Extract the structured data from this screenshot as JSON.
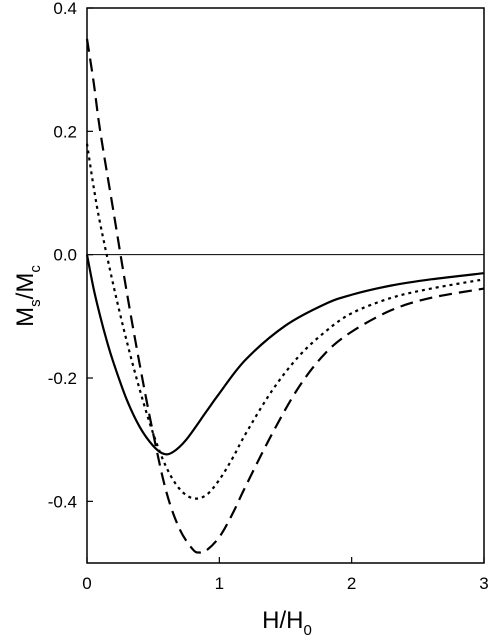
{
  "chart_data": {
    "type": "line",
    "xlabel": {
      "main": "H/H",
      "sub": "0"
    },
    "ylabel": {
      "m": "M",
      "s1": "s",
      "slash": "/M",
      "s2": "c"
    },
    "xlim": [
      0,
      3
    ],
    "ylim": [
      -0.5,
      0.4
    ],
    "x_ticks": [
      {
        "value": 0,
        "label": "0"
      },
      {
        "value": 1,
        "label": "1"
      },
      {
        "value": 2,
        "label": "2"
      },
      {
        "value": 3,
        "label": "3"
      }
    ],
    "y_ticks": [
      {
        "value": 0.4,
        "label": "0.4"
      },
      {
        "value": 0.2,
        "label": "0.2"
      },
      {
        "value": 0.0,
        "label": "0.0"
      },
      {
        "value": -0.2,
        "label": "-0.2"
      },
      {
        "value": -0.4,
        "label": "-0.4"
      }
    ],
    "reference_line": {
      "y": 0
    },
    "grid": false,
    "legend": "none",
    "series": [
      {
        "style": "solid",
        "x": [
          0,
          0.05,
          0.1,
          0.15,
          0.2,
          0.3,
          0.4,
          0.5,
          0.58,
          0.65,
          0.75,
          0.9,
          1.0,
          1.2,
          1.5,
          1.8,
          2.0,
          2.3,
          2.6,
          3.0
        ],
        "y": [
          0,
          -0.055,
          -0.1,
          -0.14,
          -0.175,
          -0.235,
          -0.28,
          -0.31,
          -0.323,
          -0.32,
          -0.3,
          -0.255,
          -0.225,
          -0.17,
          -0.115,
          -0.08,
          -0.065,
          -0.05,
          -0.04,
          -0.03
        ]
      },
      {
        "style": "dotted",
        "x": [
          0,
          0.05,
          0.1,
          0.2,
          0.3,
          0.4,
          0.5,
          0.6,
          0.7,
          0.8,
          0.9,
          1.0,
          1.1,
          1.2,
          1.4,
          1.6,
          1.8,
          2.0,
          2.3,
          2.6,
          3.0
        ],
        "y": [
          0.18,
          0.11,
          0.05,
          -0.05,
          -0.14,
          -0.22,
          -0.29,
          -0.345,
          -0.38,
          -0.395,
          -0.39,
          -0.365,
          -0.33,
          -0.29,
          -0.22,
          -0.165,
          -0.125,
          -0.095,
          -0.07,
          -0.055,
          -0.04
        ]
      },
      {
        "style": "dashed",
        "x": [
          0,
          0.05,
          0.1,
          0.2,
          0.3,
          0.4,
          0.5,
          0.6,
          0.7,
          0.8,
          0.85,
          0.9,
          1.0,
          1.1,
          1.2,
          1.4,
          1.6,
          1.8,
          2.0,
          2.3,
          2.6,
          3.0
        ],
        "y": [
          0.35,
          0.28,
          0.2,
          0.07,
          -0.06,
          -0.18,
          -0.29,
          -0.385,
          -0.445,
          -0.478,
          -0.483,
          -0.48,
          -0.458,
          -0.42,
          -0.375,
          -0.29,
          -0.215,
          -0.16,
          -0.125,
          -0.09,
          -0.07,
          -0.055
        ]
      }
    ]
  }
}
